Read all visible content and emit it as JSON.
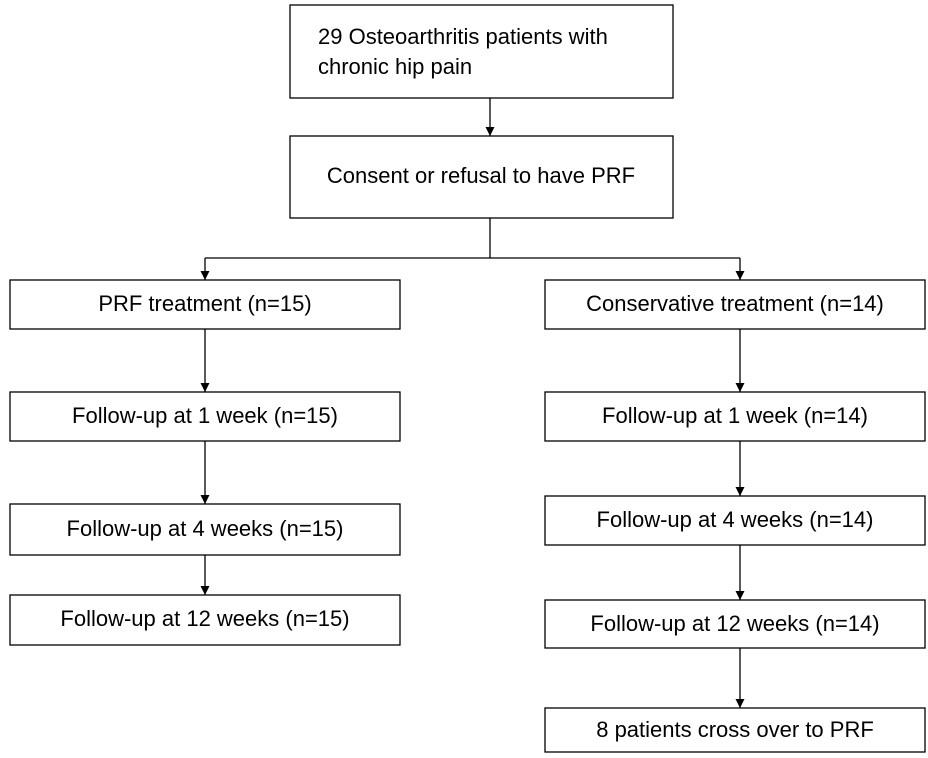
{
  "nodes": [
    {
      "lines": [
        "29 Osteoarthritis patients with",
        "chronic hip pain"
      ]
    },
    {
      "label": "Consent or refusal to have PRF"
    },
    {
      "label": "PRF treatment (n=15)"
    },
    {
      "label": "Follow-up at 1 week (n=15)"
    },
    {
      "label": "Follow-up at 4 weeks (n=15)"
    },
    {
      "label": "Follow-up at 12 weeks (n=15)"
    },
    {
      "label": "Conservative treatment (n=14)"
    },
    {
      "label": "Follow-up at 1 week (n=14)"
    },
    {
      "label": "Follow-up at 4 weeks (n=14)"
    },
    {
      "label": "Follow-up at 12 weeks (n=14)"
    },
    {
      "label": "8 patients cross over to PRF"
    }
  ]
}
